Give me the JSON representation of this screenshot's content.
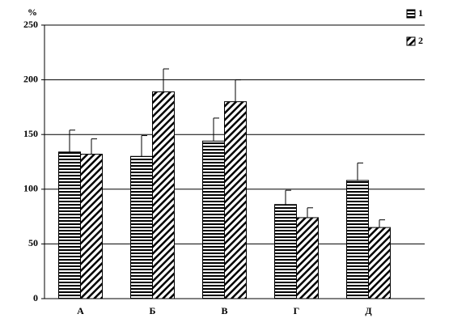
{
  "chart_data": {
    "type": "bar",
    "y_label": "%",
    "categories": [
      "А",
      "Б",
      "В",
      "Г",
      "Д"
    ],
    "series": [
      {
        "name": "1",
        "color": "#000000",
        "pattern": "horizontal",
        "values": [
          134,
          130,
          144,
          86,
          108
        ],
        "errors": [
          20,
          19,
          21,
          13,
          16
        ]
      },
      {
        "name": "2",
        "color": "#000000",
        "pattern": "diagonal",
        "values": [
          132,
          189,
          180,
          74,
          65
        ],
        "errors": [
          14,
          21,
          20,
          9,
          7
        ]
      }
    ],
    "ylim": [
      0,
      250
    ],
    "yticks": [
      0,
      50,
      100,
      150,
      200,
      250
    ],
    "grid": true,
    "legend": "top-right"
  }
}
